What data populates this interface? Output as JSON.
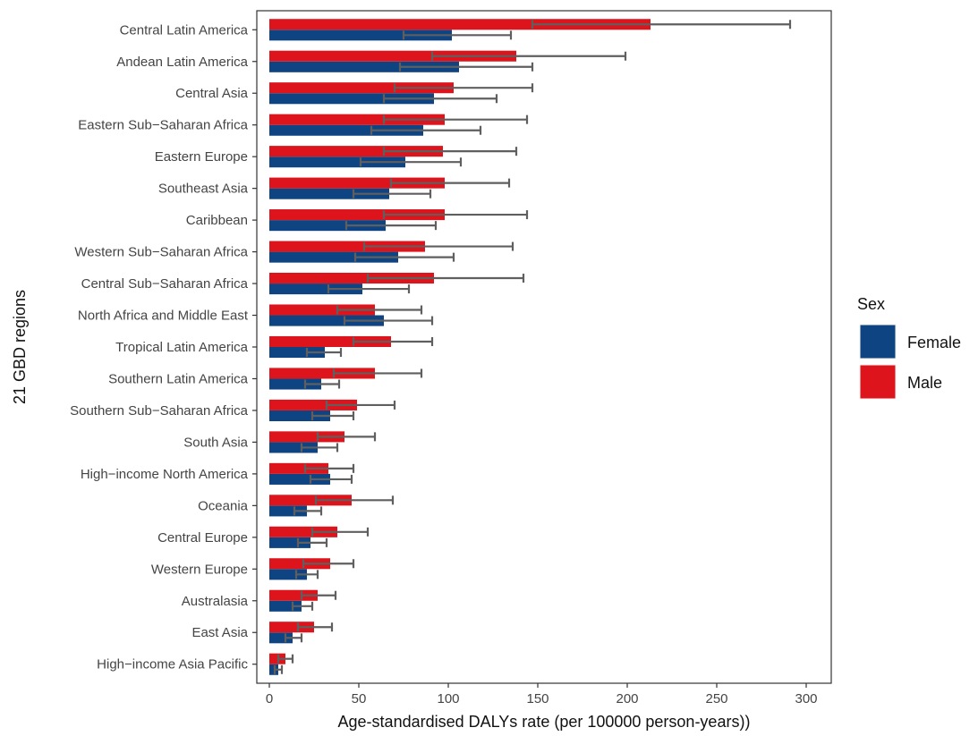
{
  "chart_data": {
    "type": "bar",
    "orientation": "horizontal",
    "title": "",
    "xlabel": "Age-standardised DALYs rate (per 100000 person-years))",
    "ylabel": "21 GBD regions",
    "xlim": [
      -7,
      314
    ],
    "xticks": [
      0,
      50,
      100,
      150,
      200,
      250,
      300
    ],
    "grid": false,
    "legend": {
      "title": "Sex",
      "position": "right"
    },
    "colors": {
      "Female": "#0f4483",
      "Male": "#dd141b",
      "errorbar": "#5f5f5f",
      "axis": "#333333"
    },
    "categories": [
      "Central Latin America",
      "Andean Latin America",
      "Central Asia",
      "Eastern Sub−Saharan Africa",
      "Eastern Europe",
      "Southeast Asia",
      "Caribbean",
      "Western Sub−Saharan Africa",
      "Central Sub−Saharan Africa",
      "North Africa and Middle East",
      "Tropical Latin America",
      "Southern Latin America",
      "Southern Sub−Saharan Africa",
      "South Asia",
      "High−income North America",
      "Oceania",
      "Central Europe",
      "Western Europe",
      "Australasia",
      "East Asia",
      "High−income Asia Pacific"
    ],
    "series": [
      {
        "name": "Female",
        "values": [
          102,
          106,
          92,
          86,
          76,
          67,
          65,
          72,
          52,
          64,
          31,
          29,
          34,
          27,
          34,
          21,
          23,
          21,
          18,
          13,
          5
        ],
        "lower": [
          75,
          73,
          64,
          57,
          51,
          47,
          43,
          48,
          33,
          42,
          21,
          20,
          24,
          18,
          23,
          14,
          16,
          15,
          13,
          9,
          3
        ],
        "upper": [
          135,
          147,
          127,
          118,
          107,
          90,
          93,
          103,
          78,
          91,
          40,
          39,
          47,
          38,
          46,
          29,
          32,
          27,
          24,
          18,
          7
        ]
      },
      {
        "name": "Male",
        "values": [
          213,
          138,
          103,
          98,
          97,
          98,
          98,
          87,
          92,
          59,
          68,
          59,
          49,
          42,
          33,
          46,
          38,
          34,
          27,
          25,
          9
        ],
        "lower": [
          147,
          91,
          70,
          64,
          64,
          68,
          64,
          53,
          55,
          38,
          47,
          36,
          32,
          27,
          20,
          26,
          24,
          19,
          18,
          16,
          5
        ],
        "upper": [
          291,
          199,
          147,
          144,
          138,
          134,
          144,
          136,
          142,
          85,
          91,
          85,
          70,
          59,
          47,
          69,
          55,
          47,
          37,
          35,
          13
        ]
      }
    ]
  }
}
